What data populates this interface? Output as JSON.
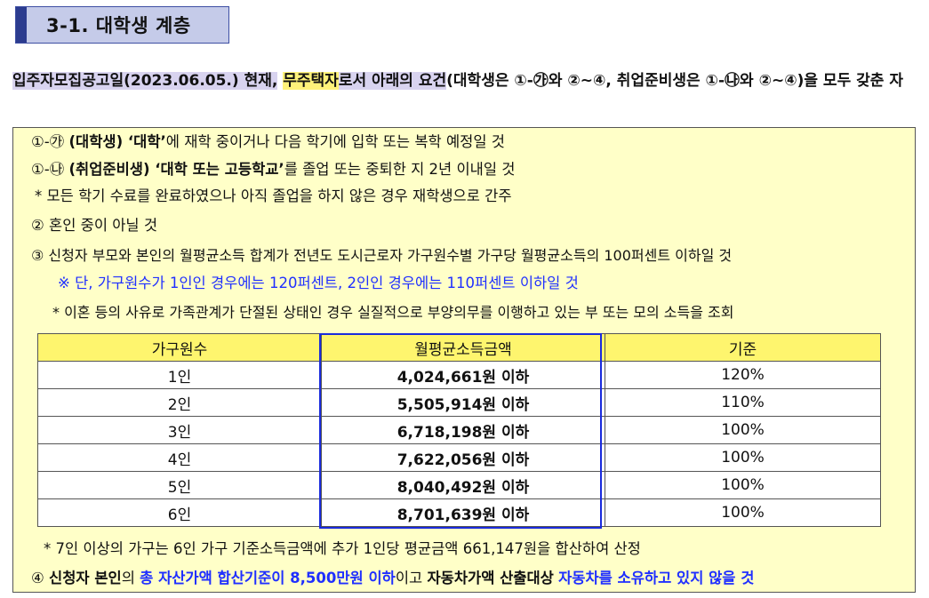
{
  "section": {
    "number_title": "3-1. 대학생 계층"
  },
  "intro": {
    "part1": "입주자모집공고일(2023.06.05.) 현재,",
    "part2": "무주택자",
    "part3": "로서 아래의 요건",
    "part4": "(대학생은 ①-㉮와 ②~④, 취업준비생은 ①-㉯와 ②~④)을 모두 갖춘 자"
  },
  "criteria": {
    "c1a_prefix": "①-㉮",
    "c1a_bold": "(대학생) ‘대학’",
    "c1a_text": "에 재학 중이거나 다음 학기에 입학 또는 복학 예정일 것",
    "c1b_prefix": "①-㉯",
    "c1b_bold": "(취업준비생) ‘대학 또는 고등학교’",
    "c1b_text": "를 졸업 또는 중퇴한 지 2년 이내일 것",
    "c1_note": "* 모든 학기 수료를 완료하였으나 아직 졸업을 하지 않은 경우 재학생으로 간주",
    "c2": "② 혼인 중이 아닐 것",
    "c3": "③ 신청자 부모와 본인의 월평균소득 합계가 전년도 도시근로자 가구원수별 가구당 월평균소득의 100퍼센트 이하일 것",
    "c3_note_blue": "※ 단, 가구원수가 1인인 경우에는 120퍼센트, 2인인 경우에는 110퍼센트 이하일 것",
    "c3_note2": "* 이혼 등의 사유로 가족관계가 단절된 상태인 경우 실질적으로 부양의무를 이행하고 있는 부 또는 모의 소득을 조회",
    "table_note": "* 7인 이상의 가구는 6인 가구 기준소득금액에 추가 1인당 평균금액 661,147원을 합산하여 산정",
    "c4_prefix": "④",
    "c4_bold1": "신청자 본인",
    "c4_text1": "의",
    "c4_blue1": "총 자산가액 합산기준이 8,500만원 이하",
    "c4_text2": "이고",
    "c4_bold2": "자동차가액 산출대상",
    "c4_blue2": "자동차를 소유하고 있지 않을 것"
  },
  "income_table": {
    "headers": [
      "가구원수",
      "월평균소득금액",
      "기준"
    ],
    "rows": [
      [
        "1인",
        "4,024,661원 이하",
        "120%"
      ],
      [
        "2인",
        "5,505,914원 이하",
        "110%"
      ],
      [
        "3인",
        "6,718,198원 이하",
        "100%"
      ],
      [
        "4인",
        "7,622,056원 이하",
        "100%"
      ],
      [
        "5인",
        "8,040,492원 이하",
        "100%"
      ],
      [
        "6인",
        "8,701,639원 이하",
        "100%"
      ]
    ]
  }
}
